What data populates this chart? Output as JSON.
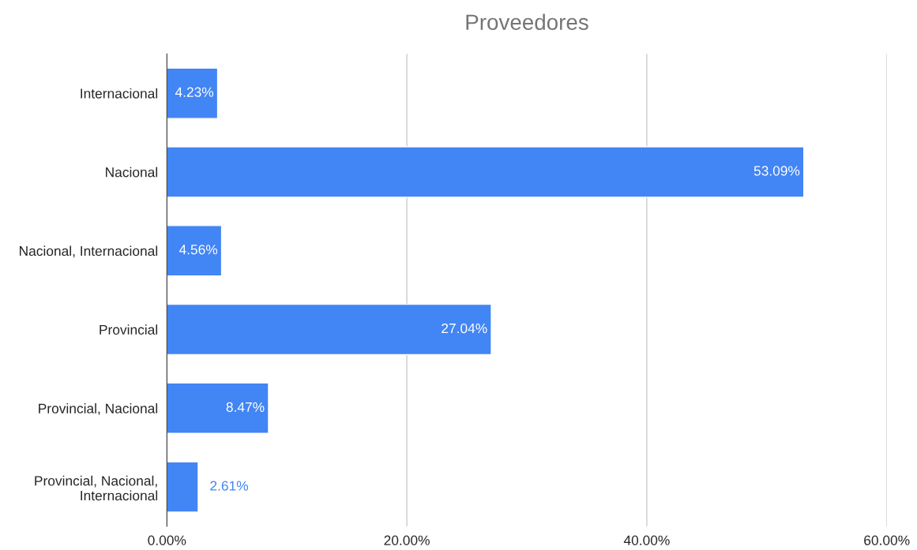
{
  "chart_data": {
    "type": "bar",
    "orientation": "horizontal",
    "title": "Proveedores",
    "categories": [
      "Internacional",
      "Nacional",
      "Nacional, Internacional",
      "Provincial",
      "Provincial, Nacional",
      "Provincial, Nacional, Internacional"
    ],
    "values": [
      4.23,
      53.09,
      4.56,
      27.04,
      8.47,
      2.61
    ],
    "value_labels": [
      "4.23%",
      "53.09%",
      "4.56%",
      "27.04%",
      "8.47%",
      "2.61%"
    ],
    "color": "#4285f4",
    "xlim": [
      0,
      60
    ],
    "xticks": [
      {
        "value": 0,
        "label": "0.00%"
      },
      {
        "value": 20,
        "label": "20.00%"
      },
      {
        "value": 40,
        "label": "40.00%"
      },
      {
        "value": 60,
        "label": "60.00%"
      }
    ],
    "grid": "x"
  }
}
